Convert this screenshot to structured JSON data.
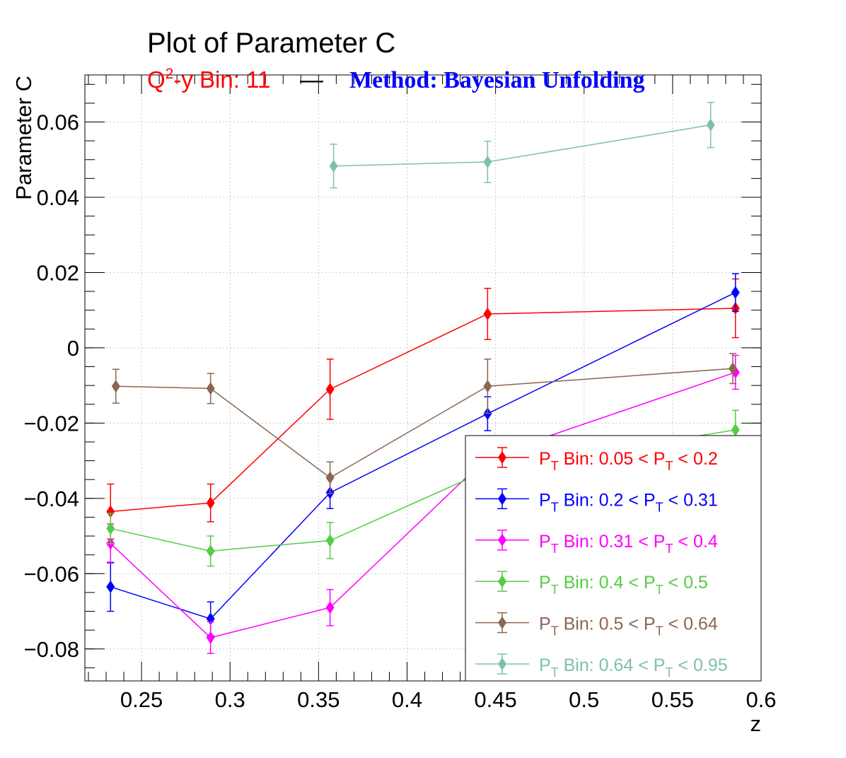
{
  "chart_data": {
    "type": "line",
    "title": "Plot of Parameter C",
    "subtitle": {
      "bin_prefix": "Q",
      "bin_sup": "2",
      "bin_rest": "-y Bin: 11",
      "separator": "—",
      "method": "Method: Bayesian Unfolding"
    },
    "xlabel": "z",
    "ylabel": "Parameter C",
    "xlim": [
      0.218,
      0.6
    ],
    "ylim": [
      -0.0885,
      0.0725
    ],
    "x_ticks": [
      {
        "value": 0.25,
        "label": "0.25"
      },
      {
        "value": 0.3,
        "label": "0.3"
      },
      {
        "value": 0.35,
        "label": "0.35"
      },
      {
        "value": 0.4,
        "label": "0.4"
      },
      {
        "value": 0.45,
        "label": "0.45"
      },
      {
        "value": 0.5,
        "label": "0.5"
      },
      {
        "value": 0.55,
        "label": "0.55"
      },
      {
        "value": 0.6,
        "label": "0.6"
      }
    ],
    "y_ticks": [
      {
        "value": -0.08,
        "label": "−0.08"
      },
      {
        "value": -0.06,
        "label": "−0.06"
      },
      {
        "value": -0.04,
        "label": "−0.04"
      },
      {
        "value": -0.02,
        "label": "−0.02"
      },
      {
        "value": 0,
        "label": "0"
      },
      {
        "value": 0.02,
        "label": "0.02"
      },
      {
        "value": 0.04,
        "label": "0.04"
      },
      {
        "value": 0.06,
        "label": "0.06"
      }
    ],
    "grid": true,
    "legend_position": "bottom-right",
    "series": [
      {
        "legend": {
          "pre": "P",
          "sub1": "T",
          "mid": " Bin: 0.05 < P",
          "sub2": "T",
          "post": " < 0.2"
        },
        "color": "#ff0000",
        "x": [
          0.2325,
          0.289,
          0.3565,
          0.4455,
          0.5855
        ],
        "y": [
          -0.0435,
          -0.0412,
          -0.011,
          0.009,
          0.0105
        ],
        "err": [
          0.0073,
          0.005,
          0.008,
          0.0068,
          0.0078
        ]
      },
      {
        "legend": {
          "pre": "P",
          "sub1": "T",
          "mid": " Bin: 0.2 < P",
          "sub2": "T",
          "post": " < 0.31"
        },
        "color": "#0000ff",
        "x": [
          0.2325,
          0.289,
          0.3565,
          0.4455,
          0.5855
        ],
        "y": [
          -0.0635,
          -0.072,
          -0.0385,
          -0.0175,
          0.0147
        ],
        "err": [
          0.0065,
          0.0045,
          0.0042,
          0.0045,
          0.005
        ]
      },
      {
        "legend": {
          "pre": "P",
          "sub1": "T",
          "mid": " Bin: 0.31 < P",
          "sub2": "T",
          "post": " < 0.4"
        },
        "color": "#ff00ff",
        "x": [
          0.2325,
          0.289,
          0.3565,
          0.4455,
          0.5855
        ],
        "y": [
          -0.052,
          -0.077,
          -0.069,
          -0.029,
          -0.0065
        ],
        "err": [
          0.0052,
          0.0042,
          0.0048,
          0.0045,
          0.0045
        ]
      },
      {
        "legend": {
          "pre": "P",
          "sub1": "T",
          "mid": " Bin: 0.4 < P",
          "sub2": "T",
          "post": " < 0.5"
        },
        "color": "#55cc44",
        "x": [
          0.2325,
          0.289,
          0.3565,
          0.4455,
          0.5855
        ],
        "y": [
          -0.048,
          -0.054,
          -0.0512,
          -0.0325,
          -0.0218
        ],
        "err": [
          0.004,
          0.004,
          0.0048,
          0.0045,
          0.0052
        ]
      },
      {
        "legend": {
          "pre": "P",
          "sub1": "T",
          "mid": " Bin: 0.5 < P",
          "sub2": "T",
          "post": " < 0.64"
        },
        "color": "#8b6652",
        "x": [
          0.2355,
          0.289,
          0.3565,
          0.4455,
          0.584
        ],
        "y": [
          -0.0102,
          -0.0108,
          -0.0345,
          -0.0102,
          -0.0055
        ],
        "err": [
          0.0045,
          0.004,
          0.0042,
          0.0072,
          0.004
        ]
      },
      {
        "legend": {
          "pre": "P",
          "sub1": "T",
          "mid": " Bin: 0.64 < P",
          "sub2": "T",
          "post": " < 0.95"
        },
        "color": "#7ec2a4",
        "x": [
          0.3585,
          0.4455,
          0.5715
        ],
        "y": [
          0.0483,
          0.0494,
          0.0592
        ],
        "err": [
          0.0058,
          0.0055,
          0.006
        ]
      }
    ]
  }
}
